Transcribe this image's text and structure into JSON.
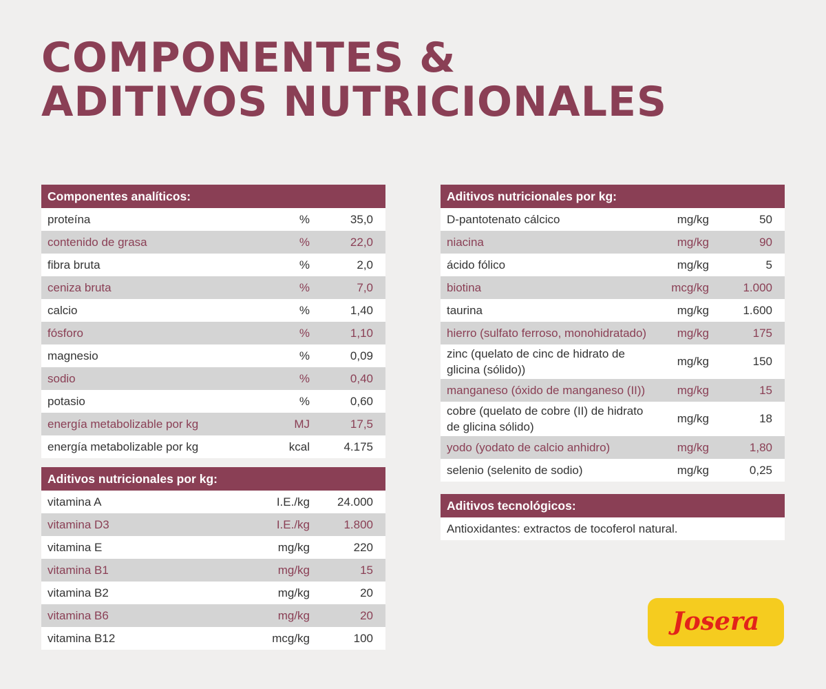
{
  "title": {
    "line1": "Componentes &",
    "line2": "Aditivos nutricionales"
  },
  "analytical": {
    "header": "Componentes analíticos:",
    "rows": [
      {
        "name": "proteína",
        "unit": "%",
        "value": "35,0"
      },
      {
        "name": "contenido de grasa",
        "unit": "%",
        "value": "22,0"
      },
      {
        "name": "fibra bruta",
        "unit": "%",
        "value": "2,0"
      },
      {
        "name": "ceniza bruta",
        "unit": "%",
        "value": "7,0"
      },
      {
        "name": "calcio",
        "unit": "%",
        "value": "1,40"
      },
      {
        "name": "fósforo",
        "unit": "%",
        "value": "1,10"
      },
      {
        "name": "magnesio",
        "unit": "%",
        "value": "0,09"
      },
      {
        "name": "sodio",
        "unit": "%",
        "value": "0,40"
      },
      {
        "name": "potasio",
        "unit": "%",
        "value": "0,60"
      },
      {
        "name": "energía metabolizable por kg",
        "unit": "MJ",
        "value": "17,5"
      },
      {
        "name": "energía metabolizable por kg",
        "unit": "kcal",
        "value": "4.175"
      }
    ]
  },
  "vitamins": {
    "header": "Aditivos nutricionales por kg:",
    "rows": [
      {
        "name": "vitamina A",
        "unit": "I.E./kg",
        "value": "24.000"
      },
      {
        "name": "vitamina D3",
        "unit": "I.E./kg",
        "value": "1.800"
      },
      {
        "name": "vitamina E",
        "unit": "mg/kg",
        "value": "220"
      },
      {
        "name": "vitamina B1",
        "unit": "mg/kg",
        "value": "15"
      },
      {
        "name": "vitamina B2",
        "unit": "mg/kg",
        "value": "20"
      },
      {
        "name": "vitamina B6",
        "unit": "mg/kg",
        "value": "20"
      },
      {
        "name": "vitamina B12",
        "unit": "mcg/kg",
        "value": "100"
      }
    ]
  },
  "additives": {
    "header": "Aditivos nutricionales por kg:",
    "rows": [
      {
        "name": "D-pantotenato cálcico",
        "unit": "mg/kg",
        "value": "50"
      },
      {
        "name": "niacina",
        "unit": "mg/kg",
        "value": "90"
      },
      {
        "name": "ácido fólico",
        "unit": "mg/kg",
        "value": "5"
      },
      {
        "name": "biotina",
        "unit": "mcg/kg",
        "value": "1.000"
      },
      {
        "name": "taurina",
        "unit": "mg/kg",
        "value": "1.600"
      },
      {
        "name": "hierro (sulfato ferroso, monohidratado)",
        "unit": "mg/kg",
        "value": "175"
      },
      {
        "name": "zinc (quelato de cinc de hidrato de glicina (sólido))",
        "unit": "mg/kg",
        "value": "150"
      },
      {
        "name": "manganeso (óxido de manganeso (II))",
        "unit": "mg/kg",
        "value": "15"
      },
      {
        "name": "cobre (quelato de cobre (II) de hidrato de glicina sólido)",
        "unit": "mg/kg",
        "value": "18"
      },
      {
        "name": "yodo (yodato de calcio anhidro)",
        "unit": "mg/kg",
        "value": "1,80"
      },
      {
        "name": "selenio (selenito de sodio)",
        "unit": "mg/kg",
        "value": "0,25"
      }
    ]
  },
  "technological": {
    "header": "Aditivos tecnológicos:",
    "text": "Antioxidantes: extractos de tocoferol natural."
  },
  "logo": {
    "text": "Josera"
  },
  "colors": {
    "accent": "#8a3f55",
    "background": "#f0efee",
    "alt_row": "#d4d4d4",
    "logo_yellow": "#f5cc1f",
    "logo_red": "#e2231a"
  }
}
